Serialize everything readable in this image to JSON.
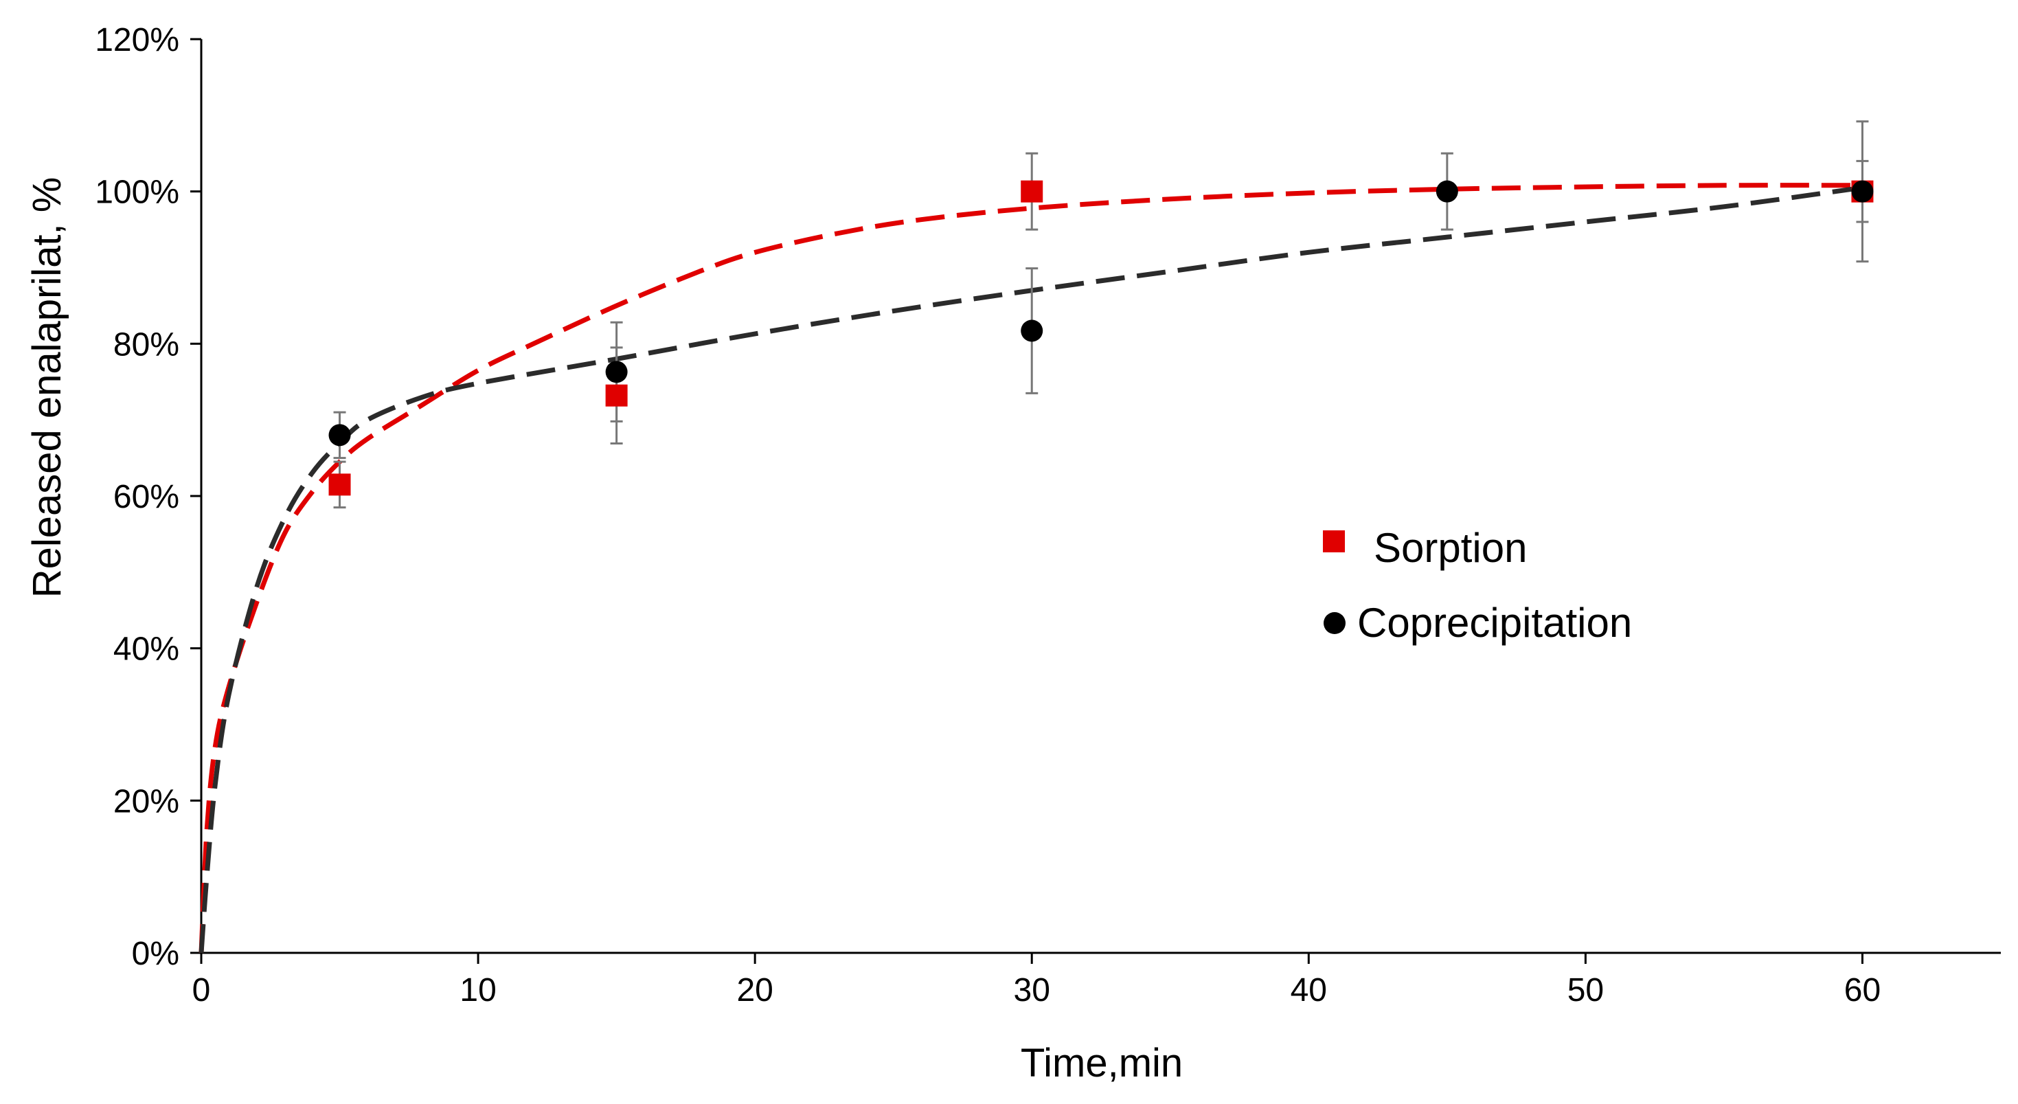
{
  "chart_data": {
    "type": "scatter",
    "xlabel": "Time,min",
    "ylabel": "Released enalaprilat, %",
    "xlim": [
      0,
      65
    ],
    "ylim": [
      0,
      120
    ],
    "x_ticks": [
      0,
      10,
      20,
      30,
      40,
      50,
      60
    ],
    "y_ticks": [
      0,
      20,
      40,
      60,
      80,
      100,
      120
    ],
    "x_tick_labels": [
      "0",
      "10",
      "20",
      "30",
      "40",
      "50",
      "60"
    ],
    "y_tick_labels": [
      "0%",
      "20%",
      "40%",
      "60%",
      "80%",
      "100%",
      "120%"
    ],
    "grid": false,
    "legend_position": "center-right",
    "series": [
      {
        "name": "Sorption",
        "marker": "square",
        "color": "#e00000",
        "x": [
          5,
          15,
          30,
          60
        ],
        "y": [
          61.5,
          73.2,
          100,
          100
        ],
        "err": [
          3,
          6.3,
          5,
          9.2
        ],
        "fit": "dashed",
        "fit_points": [
          [
            0,
            0
          ],
          [
            0.2,
            16
          ],
          [
            0.5,
            27
          ],
          [
            1,
            35
          ],
          [
            2,
            46
          ],
          [
            3,
            55
          ],
          [
            4,
            60.5
          ],
          [
            5,
            64.5
          ],
          [
            6,
            67.5
          ],
          [
            8,
            72
          ],
          [
            10,
            76.5
          ],
          [
            12,
            80
          ],
          [
            15,
            85
          ],
          [
            18,
            89.5
          ],
          [
            20,
            92
          ],
          [
            23,
            94.5
          ],
          [
            26,
            96.3
          ],
          [
            30,
            97.8
          ],
          [
            35,
            99
          ],
          [
            40,
            99.8
          ],
          [
            45,
            100.3
          ],
          [
            50,
            100.6
          ],
          [
            55,
            100.8
          ],
          [
            60,
            100.8
          ]
        ]
      },
      {
        "name": "Coprecipitation",
        "marker": "circle",
        "color": "#000000",
        "x": [
          5,
          15,
          30,
          45,
          60
        ],
        "y": [
          68,
          76.3,
          81.7,
          100,
          100
        ],
        "err": [
          3,
          6.5,
          8.2,
          5,
          4
        ],
        "fit": "dashed",
        "fit_points": [
          [
            0,
            0
          ],
          [
            0.2,
            10
          ],
          [
            0.5,
            22
          ],
          [
            1,
            34
          ],
          [
            2,
            48
          ],
          [
            3,
            57
          ],
          [
            4,
            63
          ],
          [
            5,
            67
          ],
          [
            6,
            70
          ],
          [
            8,
            73
          ],
          [
            10,
            74.8
          ],
          [
            15,
            78
          ],
          [
            20,
            81.3
          ],
          [
            25,
            84.3
          ],
          [
            30,
            87
          ],
          [
            35,
            89.5
          ],
          [
            40,
            92
          ],
          [
            45,
            94
          ],
          [
            50,
            96
          ],
          [
            55,
            98
          ],
          [
            60,
            100.5
          ]
        ]
      }
    ]
  },
  "colors": {
    "sorption": "#e00000",
    "coprecipitation_marker": "#000000",
    "coprecipitation_fit": "#2b2b2b",
    "error_bar": "#777777",
    "axis": "#000000"
  }
}
